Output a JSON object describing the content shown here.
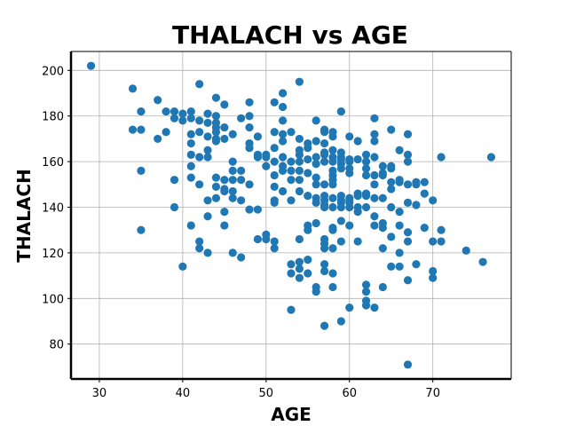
{
  "chart_data": {
    "type": "scatter",
    "title": "THALACH vs AGE",
    "xlabel": "AGE",
    "ylabel": "THALACH",
    "xlim": [
      26.6,
      79.4
    ],
    "ylim": [
      64.7,
      208.3
    ],
    "xticks": [
      30,
      40,
      50,
      60,
      70
    ],
    "yticks": [
      80,
      100,
      120,
      140,
      160,
      180,
      200
    ],
    "grid": true,
    "color": "#1f77b4",
    "points": [
      [
        29,
        202
      ],
      [
        34,
        192
      ],
      [
        34,
        174
      ],
      [
        35,
        182
      ],
      [
        35,
        174
      ],
      [
        35,
        156
      ],
      [
        35,
        130
      ],
      [
        37,
        187
      ],
      [
        37,
        170
      ],
      [
        38,
        182
      ],
      [
        38,
        173
      ],
      [
        39,
        182
      ],
      [
        39,
        179
      ],
      [
        39,
        152
      ],
      [
        39,
        140
      ],
      [
        40,
        181
      ],
      [
        40,
        178
      ],
      [
        40,
        114
      ],
      [
        41,
        182
      ],
      [
        41,
        179
      ],
      [
        41,
        172
      ],
      [
        41,
        168
      ],
      [
        41,
        163
      ],
      [
        41,
        158
      ],
      [
        41,
        153
      ],
      [
        41,
        132
      ],
      [
        42,
        194
      ],
      [
        42,
        178
      ],
      [
        42,
        173
      ],
      [
        42,
        162
      ],
      [
        42,
        150
      ],
      [
        42,
        125
      ],
      [
        42,
        122
      ],
      [
        43,
        181
      ],
      [
        43,
        177
      ],
      [
        43,
        171
      ],
      [
        43,
        165
      ],
      [
        43,
        162
      ],
      [
        43,
        143
      ],
      [
        43,
        136
      ],
      [
        43,
        120
      ],
      [
        44,
        188
      ],
      [
        44,
        180
      ],
      [
        44,
        177
      ],
      [
        44,
        175
      ],
      [
        44,
        173
      ],
      [
        44,
        170
      ],
      [
        44,
        169
      ],
      [
        44,
        153
      ],
      [
        44,
        149
      ],
      [
        44,
        144
      ],
      [
        45,
        185
      ],
      [
        45,
        175
      ],
      [
        45,
        170
      ],
      [
        45,
        152
      ],
      [
        45,
        148
      ],
      [
        45,
        147
      ],
      [
        45,
        138
      ],
      [
        45,
        132
      ],
      [
        46,
        172
      ],
      [
        46,
        160
      ],
      [
        46,
        156
      ],
      [
        46,
        152
      ],
      [
        46,
        147
      ],
      [
        46,
        144
      ],
      [
        46,
        120
      ],
      [
        47,
        179
      ],
      [
        47,
        156
      ],
      [
        47,
        152
      ],
      [
        47,
        143
      ],
      [
        47,
        118
      ],
      [
        48,
        186
      ],
      [
        48,
        180
      ],
      [
        48,
        175
      ],
      [
        48,
        168
      ],
      [
        48,
        166
      ],
      [
        48,
        150
      ],
      [
        48,
        139
      ],
      [
        49,
        171
      ],
      [
        49,
        163
      ],
      [
        49,
        162
      ],
      [
        49,
        139
      ],
      [
        49,
        126
      ],
      [
        50,
        163
      ],
      [
        50,
        162
      ],
      [
        50,
        158
      ],
      [
        50,
        128
      ],
      [
        50,
        126
      ],
      [
        51,
        186
      ],
      [
        51,
        173
      ],
      [
        51,
        166
      ],
      [
        51,
        160
      ],
      [
        51,
        154
      ],
      [
        51,
        149
      ],
      [
        51,
        143
      ],
      [
        51,
        142
      ],
      [
        51,
        125
      ],
      [
        51,
        122
      ],
      [
        52,
        190
      ],
      [
        52,
        184
      ],
      [
        52,
        178
      ],
      [
        52,
        172
      ],
      [
        52,
        169
      ],
      [
        52,
        162
      ],
      [
        52,
        158
      ],
      [
        52,
        156
      ],
      [
        52,
        147
      ],
      [
        53,
        173
      ],
      [
        53,
        160
      ],
      [
        53,
        156
      ],
      [
        53,
        152
      ],
      [
        53,
        143
      ],
      [
        53,
        115
      ],
      [
        53,
        111
      ],
      [
        53,
        95
      ],
      [
        54,
        195
      ],
      [
        54,
        170
      ],
      [
        54,
        165
      ],
      [
        54,
        163
      ],
      [
        54,
        160
      ],
      [
        54,
        156
      ],
      [
        54,
        152
      ],
      [
        54,
        147
      ],
      [
        54,
        126
      ],
      [
        54,
        116
      ],
      [
        54,
        113
      ],
      [
        54,
        109
      ],
      [
        55,
        168
      ],
      [
        55,
        166
      ],
      [
        55,
        161
      ],
      [
        55,
        155
      ],
      [
        55,
        145
      ],
      [
        55,
        132
      ],
      [
        55,
        130
      ],
      [
        55,
        117
      ],
      [
        55,
        111
      ],
      [
        56,
        178
      ],
      [
        56,
        169
      ],
      [
        56,
        162
      ],
      [
        56,
        159
      ],
      [
        56,
        153
      ],
      [
        56,
        150
      ],
      [
        56,
        144
      ],
      [
        56,
        142
      ],
      [
        56,
        133
      ],
      [
        56,
        105
      ],
      [
        56,
        103
      ],
      [
        57,
        174
      ],
      [
        57,
        173
      ],
      [
        57,
        168
      ],
      [
        57,
        164
      ],
      [
        57,
        163
      ],
      [
        57,
        160
      ],
      [
        57,
        150
      ],
      [
        57,
        145
      ],
      [
        57,
        143
      ],
      [
        57,
        141
      ],
      [
        57,
        140
      ],
      [
        57,
        126
      ],
      [
        57,
        124
      ],
      [
        57,
        122
      ],
      [
        57,
        115
      ],
      [
        57,
        112
      ],
      [
        57,
        88
      ],
      [
        58,
        173
      ],
      [
        58,
        171
      ],
      [
        58,
        165
      ],
      [
        58,
        162
      ],
      [
        58,
        160
      ],
      [
        58,
        156
      ],
      [
        58,
        154
      ],
      [
        58,
        152
      ],
      [
        58,
        150
      ],
      [
        58,
        144
      ],
      [
        58,
        140
      ],
      [
        58,
        131
      ],
      [
        58,
        130
      ],
      [
        58,
        122
      ],
      [
        58,
        111
      ],
      [
        58,
        105
      ],
      [
        59,
        182
      ],
      [
        59,
        164
      ],
      [
        59,
        162
      ],
      [
        59,
        161
      ],
      [
        59,
        159
      ],
      [
        59,
        157
      ],
      [
        59,
        145
      ],
      [
        59,
        143
      ],
      [
        59,
        142
      ],
      [
        59,
        140
      ],
      [
        59,
        134
      ],
      [
        59,
        125
      ],
      [
        59,
        90
      ],
      [
        60,
        171
      ],
      [
        60,
        161
      ],
      [
        60,
        160
      ],
      [
        60,
        157
      ],
      [
        60,
        155
      ],
      [
        60,
        144
      ],
      [
        60,
        143
      ],
      [
        60,
        142
      ],
      [
        60,
        140
      ],
      [
        60,
        132
      ],
      [
        60,
        96
      ],
      [
        61,
        169
      ],
      [
        61,
        161
      ],
      [
        61,
        146
      ],
      [
        61,
        145
      ],
      [
        61,
        140
      ],
      [
        61,
        138
      ],
      [
        61,
        125
      ],
      [
        62,
        163
      ],
      [
        62,
        160
      ],
      [
        62,
        157
      ],
      [
        62,
        154
      ],
      [
        62,
        146
      ],
      [
        62,
        145
      ],
      [
        62,
        140
      ],
      [
        62,
        106
      ],
      [
        62,
        103
      ],
      [
        62,
        99
      ],
      [
        62,
        97
      ],
      [
        63,
        179
      ],
      [
        63,
        172
      ],
      [
        63,
        169
      ],
      [
        63,
        162
      ],
      [
        63,
        154
      ],
      [
        63,
        150
      ],
      [
        63,
        144
      ],
      [
        63,
        136
      ],
      [
        63,
        132
      ],
      [
        63,
        96
      ],
      [
        64,
        158
      ],
      [
        64,
        155
      ],
      [
        64,
        154
      ],
      [
        64,
        144
      ],
      [
        64,
        133
      ],
      [
        64,
        131
      ],
      [
        64,
        122
      ],
      [
        64,
        105
      ],
      [
        65,
        174
      ],
      [
        65,
        158
      ],
      [
        65,
        157
      ],
      [
        65,
        151
      ],
      [
        65,
        148
      ],
      [
        65,
        140
      ],
      [
        65,
        127
      ],
      [
        65,
        114
      ],
      [
        66,
        165
      ],
      [
        66,
        152
      ],
      [
        66,
        151
      ],
      [
        66,
        138
      ],
      [
        66,
        132
      ],
      [
        66,
        120
      ],
      [
        66,
        114
      ],
      [
        67,
        172
      ],
      [
        67,
        163
      ],
      [
        67,
        160
      ],
      [
        67,
        150
      ],
      [
        67,
        142
      ],
      [
        67,
        129
      ],
      [
        67,
        125
      ],
      [
        67,
        108
      ],
      [
        67,
        71
      ],
      [
        68,
        151
      ],
      [
        68,
        150
      ],
      [
        68,
        141
      ],
      [
        68,
        115
      ],
      [
        69,
        151
      ],
      [
        69,
        146
      ],
      [
        69,
        131
      ],
      [
        70,
        143
      ],
      [
        70,
        125
      ],
      [
        70,
        112
      ],
      [
        70,
        109
      ],
      [
        71,
        162
      ],
      [
        71,
        130
      ],
      [
        71,
        125
      ],
      [
        74,
        121
      ],
      [
        76,
        116
      ],
      [
        77,
        162
      ]
    ]
  }
}
